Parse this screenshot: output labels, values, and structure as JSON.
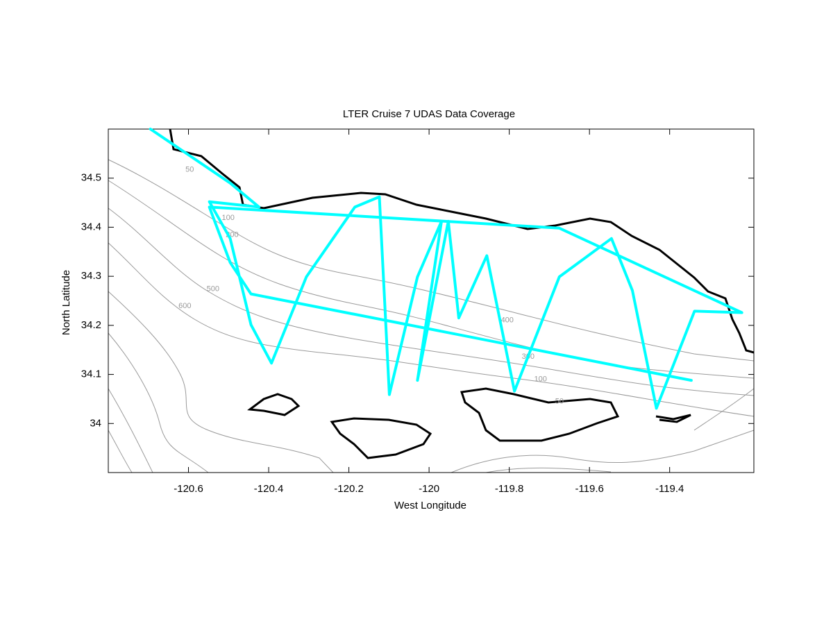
{
  "chart_data": {
    "type": "track",
    "title": "LTER Cruise 7 UDAS Data Coverage",
    "xlabel": "West Longitude",
    "ylabel": "North Latitude",
    "xlim": [
      -120.8,
      -119.19
    ],
    "ylim": [
      33.9,
      34.6
    ],
    "xticks": [
      -120.6,
      -120.4,
      -120.2,
      -120,
      -119.8,
      -119.6,
      -119.4
    ],
    "yticks": [
      34,
      34.1,
      34.2,
      34.3,
      34.4,
      34.5
    ],
    "series": [
      {
        "color": "#00ffff",
        "x": [
          -120.695,
          -120.496,
          -120.424,
          -120.548,
          -120.496,
          -120.444,
          -120.393,
          -120.306,
          -120.185,
          -120.124,
          -120.099,
          -120.029,
          -119.969,
          -120.029,
          -119.952,
          -119.926,
          -119.856,
          -119.787,
          -119.675,
          -119.545,
          -119.493,
          -119.433,
          -119.338,
          -119.22,
          -119.675,
          -120.548,
          -120.496,
          -120.444,
          -119.346
        ],
        "y": [
          34.6,
          34.49,
          34.441,
          34.452,
          34.377,
          34.201,
          34.123,
          34.299,
          34.441,
          34.462,
          34.059,
          34.299,
          34.412,
          34.088,
          34.412,
          34.215,
          34.342,
          34.066,
          34.299,
          34.377,
          34.271,
          34.031,
          34.229,
          34.226,
          34.398,
          34.441,
          34.328,
          34.264,
          34.088
        ]
      }
    ],
    "contour_labels": [
      {
        "text": "50",
        "x": -120.597,
        "y": 34.517
      },
      {
        "text": "100",
        "x": -120.501,
        "y": 34.419
      },
      {
        "text": "200",
        "x": -120.491,
        "y": 34.384
      },
      {
        "text": "500",
        "x": -120.539,
        "y": 34.274
      },
      {
        "text": "600",
        "x": -120.609,
        "y": 34.239
      },
      {
        "text": "400",
        "x": -119.805,
        "y": 34.21
      },
      {
        "text": "300",
        "x": -119.753,
        "y": 34.136
      },
      {
        "text": "100",
        "x": -119.722,
        "y": 34.09
      },
      {
        "text": "50",
        "x": -119.675,
        "y": 34.045
      }
    ]
  }
}
